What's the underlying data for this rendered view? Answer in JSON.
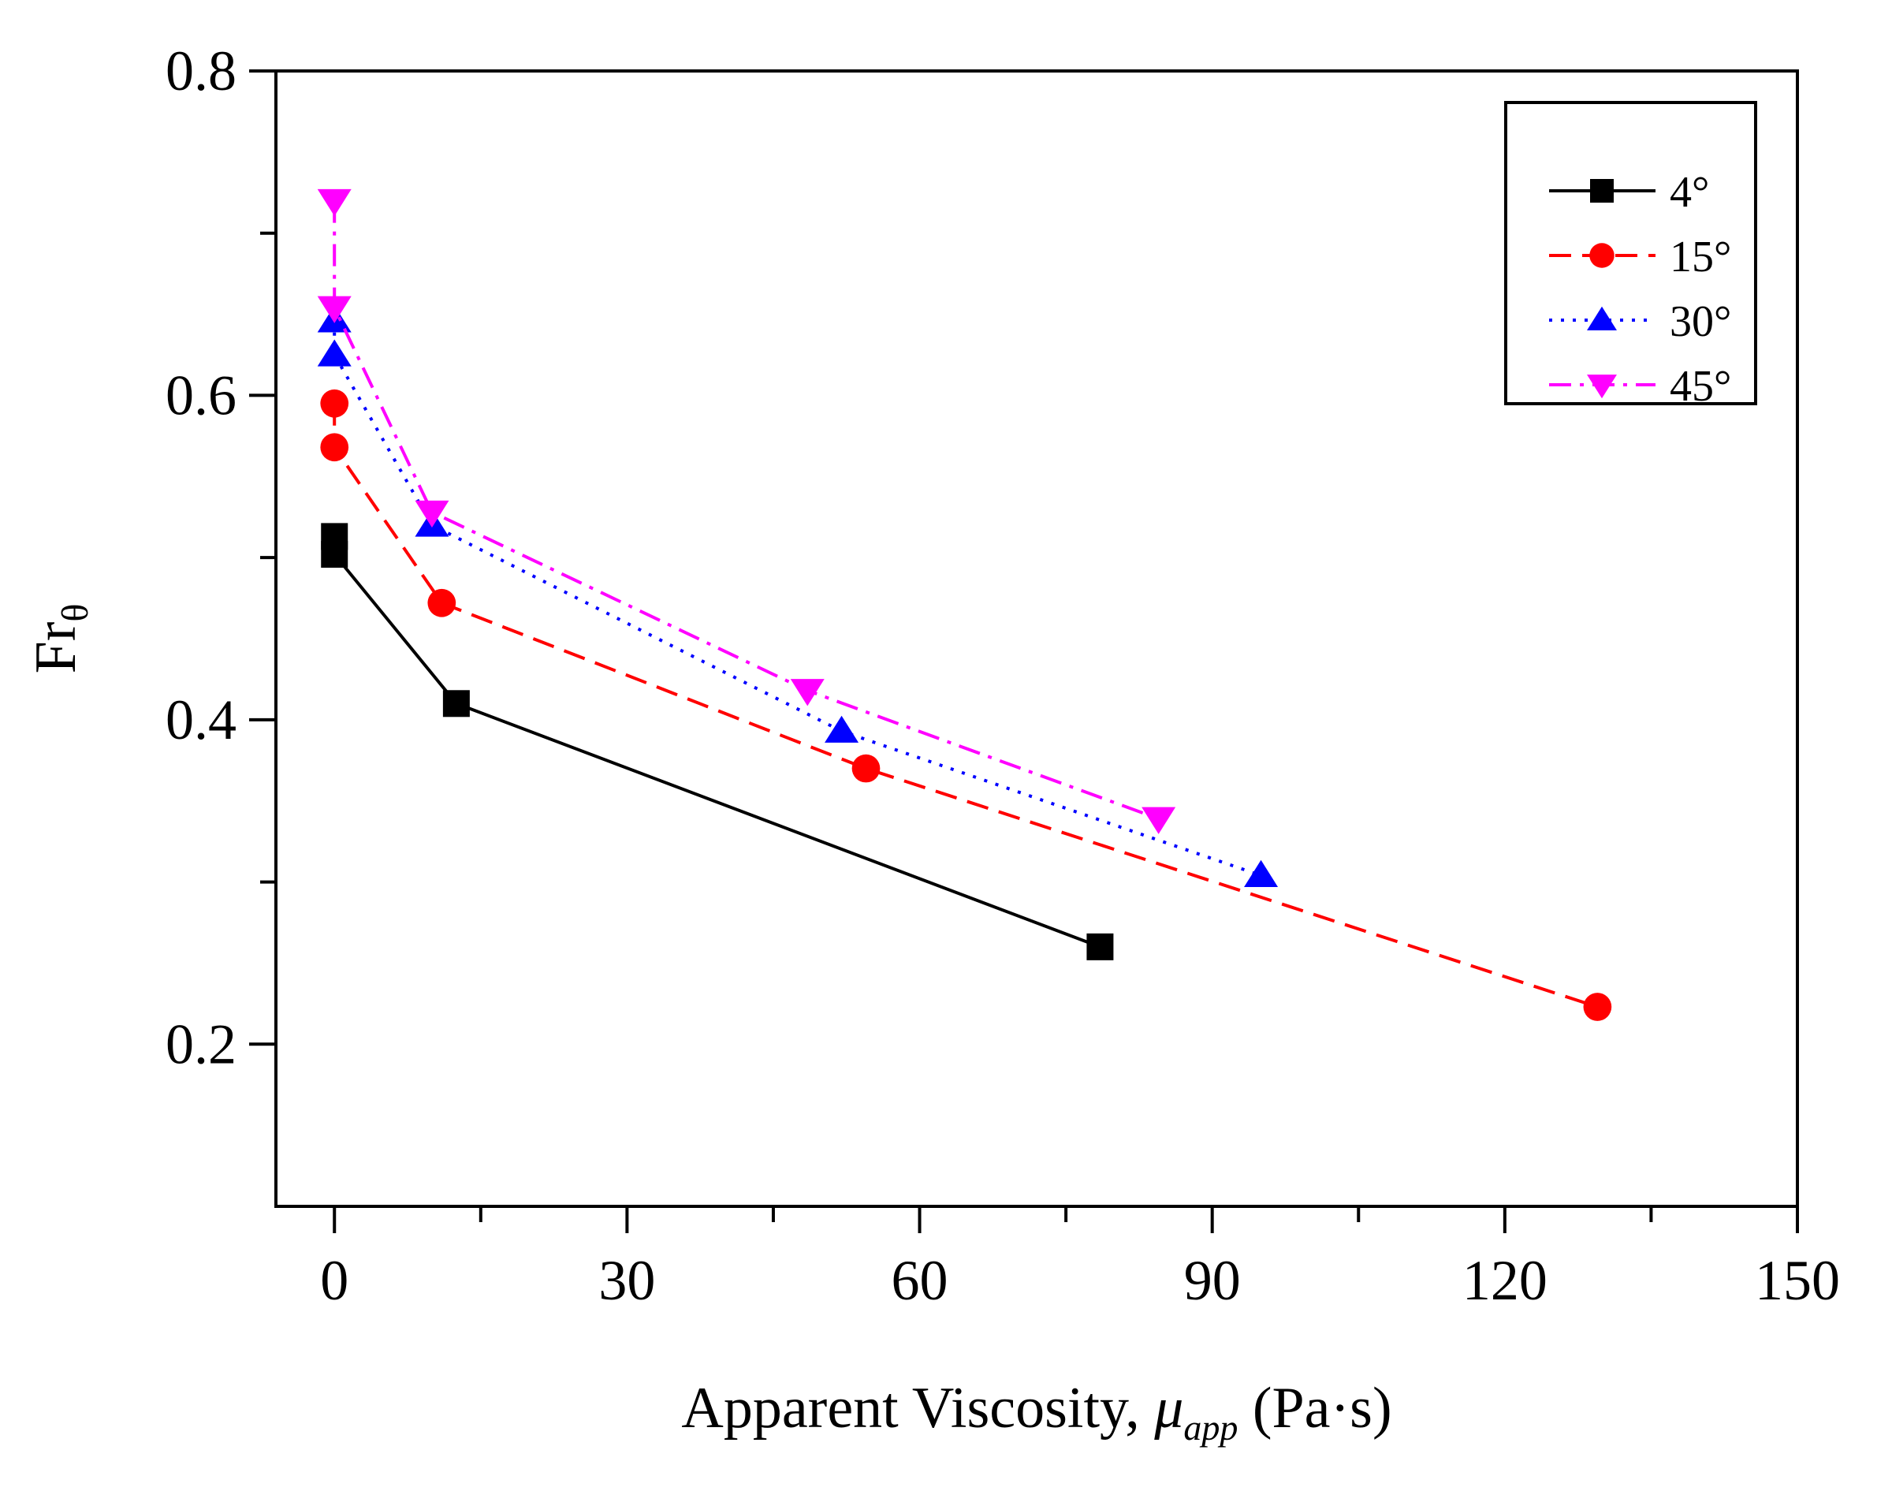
{
  "chart_data": {
    "type": "line",
    "title": "",
    "xlabel": {
      "main": "Apparent Viscosity, ",
      "symbol": "μ",
      "subscript": "app",
      "unit": " (Pa·s)"
    },
    "ylabel": {
      "main": "Fr",
      "subscript": "θ"
    },
    "xlim": [
      -6,
      150
    ],
    "ylim": [
      0.1,
      0.8
    ],
    "xticks": [
      0,
      30,
      60,
      90,
      120,
      150
    ],
    "xtick_labels": [
      "0",
      "30",
      "60",
      "90",
      "120",
      "150"
    ],
    "xminor": [
      15,
      45,
      75,
      105,
      135
    ],
    "yticks": [
      0.2,
      0.4,
      0.6,
      0.8
    ],
    "ytick_labels": [
      "0.2",
      "0.4",
      "0.6",
      "0.8"
    ],
    "yminor": [
      0.3,
      0.5,
      0.7
    ],
    "legend_position": "top-right",
    "series": [
      {
        "name": "4°",
        "color": "#000000",
        "marker": "square",
        "dash": "solid",
        "points": [
          [
            0,
            0.513
          ],
          [
            0,
            0.502
          ],
          [
            12.5,
            0.41
          ],
          [
            78.5,
            0.26
          ]
        ]
      },
      {
        "name": "15°",
        "color": "#ff0000",
        "marker": "circle",
        "dash": "dashed",
        "points": [
          [
            0,
            0.595
          ],
          [
            0,
            0.568
          ],
          [
            11,
            0.472
          ],
          [
            54.5,
            0.37
          ],
          [
            129.5,
            0.223
          ]
        ]
      },
      {
        "name": "30°",
        "color": "#0000ff",
        "marker": "triangle-up",
        "dash": "dotted",
        "points": [
          [
            0,
            0.646
          ],
          [
            0,
            0.625
          ],
          [
            10,
            0.52
          ],
          [
            52,
            0.393
          ],
          [
            95,
            0.304
          ]
        ]
      },
      {
        "name": "45°",
        "color": "#ff00ff",
        "marker": "triangle-down",
        "dash": "dash-dot",
        "points": [
          [
            0,
            0.72
          ],
          [
            0,
            0.654
          ],
          [
            10,
            0.528
          ],
          [
            48.5,
            0.418
          ],
          [
            84.5,
            0.339
          ]
        ]
      }
    ]
  }
}
